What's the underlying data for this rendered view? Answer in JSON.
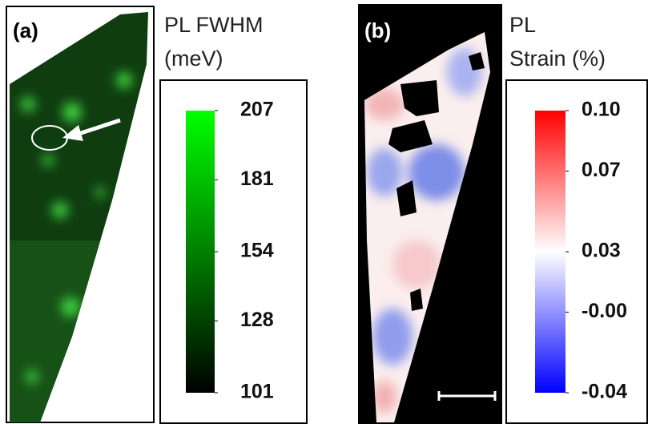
{
  "chart_data": [
    {
      "type": "colormap",
      "title": "(a)",
      "colorbar_label": [
        "PL FWHM",
        "(meV)"
      ],
      "clim": [
        101,
        207
      ],
      "cticks": [
        101,
        128,
        154,
        181,
        207
      ],
      "colors": [
        "#000000",
        "#00ff00"
      ]
    },
    {
      "type": "colormap",
      "title": "(b)",
      "colorbar_label": [
        "PL",
        "Strain (%)"
      ],
      "clim": [
        -0.04,
        0.1
      ],
      "cticks": [
        -0.04,
        {
          "value": 0,
          "label": "-0.00"
        },
        0.03,
        0.07,
        {
          "value": 0.1,
          "label": "0.10"
        }
      ],
      "colors": [
        "#0000ff",
        "#ffffff",
        "#ff0000"
      ]
    }
  ]
}
